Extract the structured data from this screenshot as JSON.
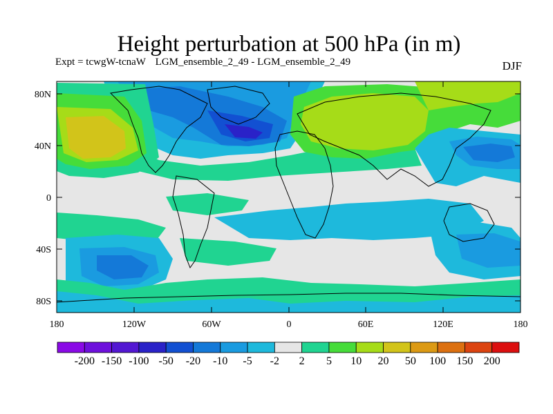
{
  "title": "Height perturbation at 500 hPa (in m)",
  "subtitle": {
    "expt_label": "Expt = tcwgW-tcnaW",
    "ensemble_label": "LGM_ensemble_2_49 - LGM_ensemble_2_49",
    "season": "DJF"
  },
  "map": {
    "lat_ticks": [
      "80N",
      "40N",
      "0",
      "40S",
      "80S"
    ],
    "lon_ticks": [
      "180",
      "120W",
      "60W",
      "0",
      "60E",
      "120E",
      "180"
    ]
  },
  "colorbar": {
    "colors": [
      "#8a0ae6",
      "#6e10dc",
      "#5318d2",
      "#2a22c8",
      "#1250d2",
      "#1479d8",
      "#1a9be0",
      "#1eb9dc",
      "#e6e6e6",
      "#20d491",
      "#46dc3a",
      "#a6dc18",
      "#d2c41a",
      "#dc9a14",
      "#dc7010",
      "#dc4410",
      "#dc0f0f"
    ],
    "labels": [
      "-200",
      "-150",
      "-100",
      "-50",
      "-20",
      "-10",
      "-5",
      "-2",
      "2",
      "5",
      "10",
      "20",
      "50",
      "100",
      "150",
      "200"
    ]
  }
}
